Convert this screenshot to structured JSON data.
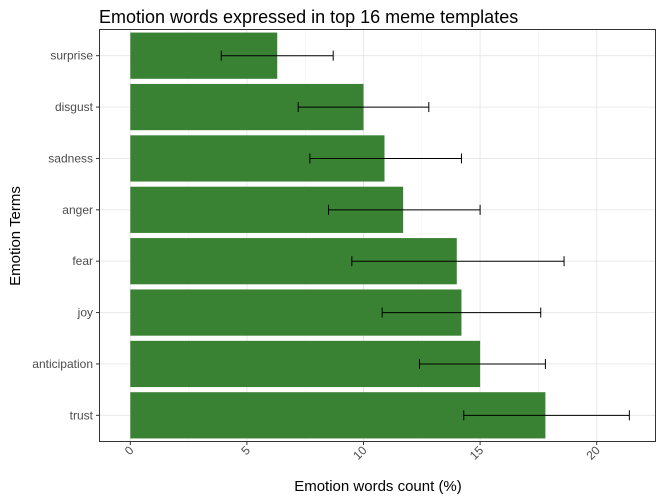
{
  "chart_data": {
    "type": "bar",
    "orientation": "horizontal",
    "title": "Emotion words expressed in top 16 meme templates",
    "xlabel": "Emotion words count (%)",
    "ylabel": "Emotion Terms",
    "categories": [
      "surprise",
      "disgust",
      "sadness",
      "anger",
      "fear",
      "joy",
      "anticipation",
      "trust"
    ],
    "values": [
      6.3,
      10.0,
      10.9,
      11.7,
      14.0,
      14.2,
      15.0,
      17.8
    ],
    "error_low": [
      3.9,
      7.2,
      7.7,
      8.5,
      9.5,
      10.8,
      12.4,
      14.3
    ],
    "error_high": [
      8.7,
      12.8,
      14.2,
      15.0,
      18.6,
      17.6,
      17.8,
      21.4
    ],
    "xlim": [
      -1.3,
      22.5
    ],
    "xticks": [
      0,
      5,
      10,
      15,
      20
    ],
    "grid": true,
    "bar_color": "#3a8233",
    "legend": "none"
  }
}
